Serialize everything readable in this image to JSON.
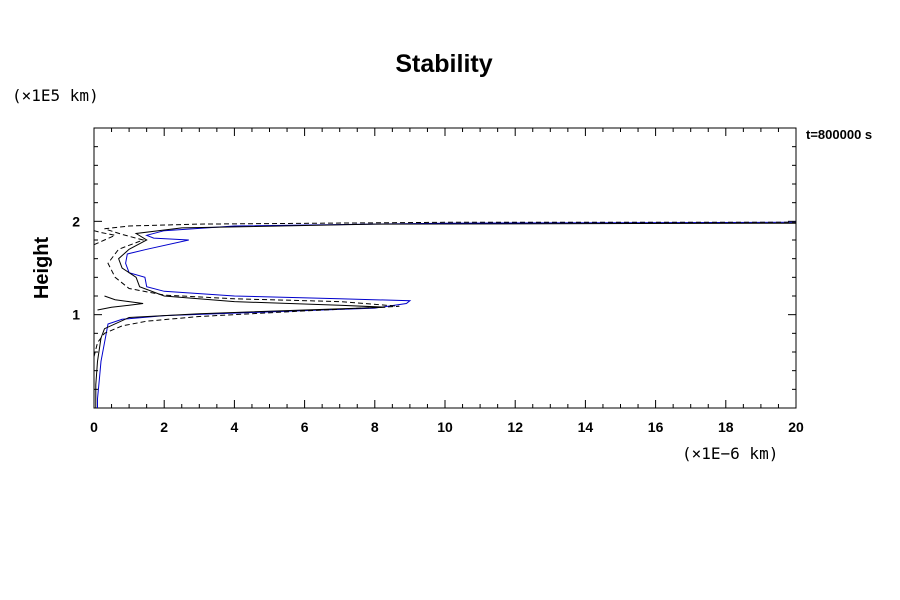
{
  "chart_data": {
    "type": "line",
    "title": "Stability",
    "xlabel": "",
    "ylabel": "Height",
    "x_unit_label": "(×1E−6 km)",
    "y_unit_label": "(×1E5 km)",
    "time_label": "t=800000 s",
    "xlim": [
      0,
      20
    ],
    "ylim": [
      0,
      3
    ],
    "x_ticks": [
      "0",
      "2",
      "4",
      "6",
      "8",
      "10",
      "12",
      "14",
      "16",
      "18",
      "20"
    ],
    "y_ticks": [
      "1",
      "2"
    ],
    "y_tick_values": [
      1,
      2
    ],
    "grid": false,
    "series": [
      {
        "color": "#0000cc",
        "dash": "solid",
        "points": [
          [
            0.1,
            0.0
          ],
          [
            0.1,
            0.1
          ],
          [
            0.15,
            0.3
          ],
          [
            0.2,
            0.5
          ],
          [
            0.3,
            0.7
          ],
          [
            0.4,
            0.9
          ],
          [
            0.8,
            0.95
          ],
          [
            2.0,
            0.99
          ],
          [
            5.0,
            1.03
          ],
          [
            8.0,
            1.07
          ],
          [
            8.9,
            1.12
          ],
          [
            9.0,
            1.15
          ],
          [
            7.0,
            1.17
          ],
          [
            4.0,
            1.2
          ],
          [
            2.0,
            1.25
          ],
          [
            1.5,
            1.3
          ],
          [
            1.45,
            1.4
          ],
          [
            1.0,
            1.45
          ],
          [
            0.9,
            1.55
          ],
          [
            0.95,
            1.65
          ],
          [
            1.5,
            1.7
          ],
          [
            2.7,
            1.8
          ],
          [
            1.7,
            1.82
          ],
          [
            1.5,
            1.85
          ],
          [
            2.0,
            1.9
          ],
          [
            4.0,
            1.95
          ],
          [
            10.0,
            1.98
          ],
          [
            20.0,
            1.99
          ]
        ]
      },
      {
        "color": "#000000",
        "dash": "solid",
        "points": [
          [
            0.05,
            0.0
          ],
          [
            0.05,
            0.25
          ],
          [
            0.1,
            0.5
          ],
          [
            0.2,
            0.75
          ],
          [
            0.3,
            0.85
          ],
          [
            1.0,
            0.97
          ],
          [
            3.0,
            1.01
          ],
          [
            6.0,
            1.05
          ],
          [
            8.3,
            1.08
          ],
          [
            7.0,
            1.1
          ],
          [
            4.0,
            1.14
          ],
          [
            2.0,
            1.2
          ],
          [
            1.3,
            1.3
          ],
          [
            1.2,
            1.4
          ],
          [
            0.8,
            1.5
          ],
          [
            0.7,
            1.6
          ],
          [
            1.0,
            1.7
          ],
          [
            1.5,
            1.8
          ],
          [
            1.2,
            1.87
          ],
          [
            2.5,
            1.93
          ],
          [
            8.0,
            1.97
          ],
          [
            20.0,
            1.98
          ]
        ]
      },
      {
        "color": "#000000",
        "dash": "dashed",
        "points": [
          [
            0.0,
            0.55
          ],
          [
            0.1,
            0.7
          ],
          [
            0.3,
            0.8
          ],
          [
            0.8,
            0.88
          ],
          [
            1.5,
            0.93
          ],
          [
            3.0,
            0.98
          ],
          [
            6.0,
            1.04
          ],
          [
            8.7,
            1.09
          ],
          [
            7.0,
            1.14
          ],
          [
            4.0,
            1.17
          ],
          [
            2.0,
            1.21
          ],
          [
            1.0,
            1.28
          ],
          [
            0.6,
            1.4
          ],
          [
            0.4,
            1.55
          ],
          [
            0.7,
            1.7
          ],
          [
            1.4,
            1.8
          ],
          [
            0.8,
            1.86
          ],
          [
            0.3,
            1.92
          ],
          [
            1.0,
            1.95
          ],
          [
            3.0,
            1.97
          ],
          [
            10.0,
            1.99
          ],
          [
            20.0,
            1.99
          ]
        ]
      },
      {
        "color": "#000000",
        "dash": "solid",
        "points": [
          [
            0.1,
            1.05
          ],
          [
            0.5,
            1.08
          ],
          [
            1.0,
            1.1
          ],
          [
            1.4,
            1.12
          ],
          [
            1.0,
            1.14
          ],
          [
            0.6,
            1.16
          ],
          [
            0.3,
            1.2
          ]
        ]
      },
      {
        "color": "#000000",
        "dash": "dashed",
        "points": [
          [
            0.0,
            1.75
          ],
          [
            0.3,
            1.8
          ],
          [
            0.6,
            1.85
          ],
          [
            0.2,
            1.88
          ],
          [
            0.0,
            1.9
          ]
        ]
      }
    ]
  }
}
